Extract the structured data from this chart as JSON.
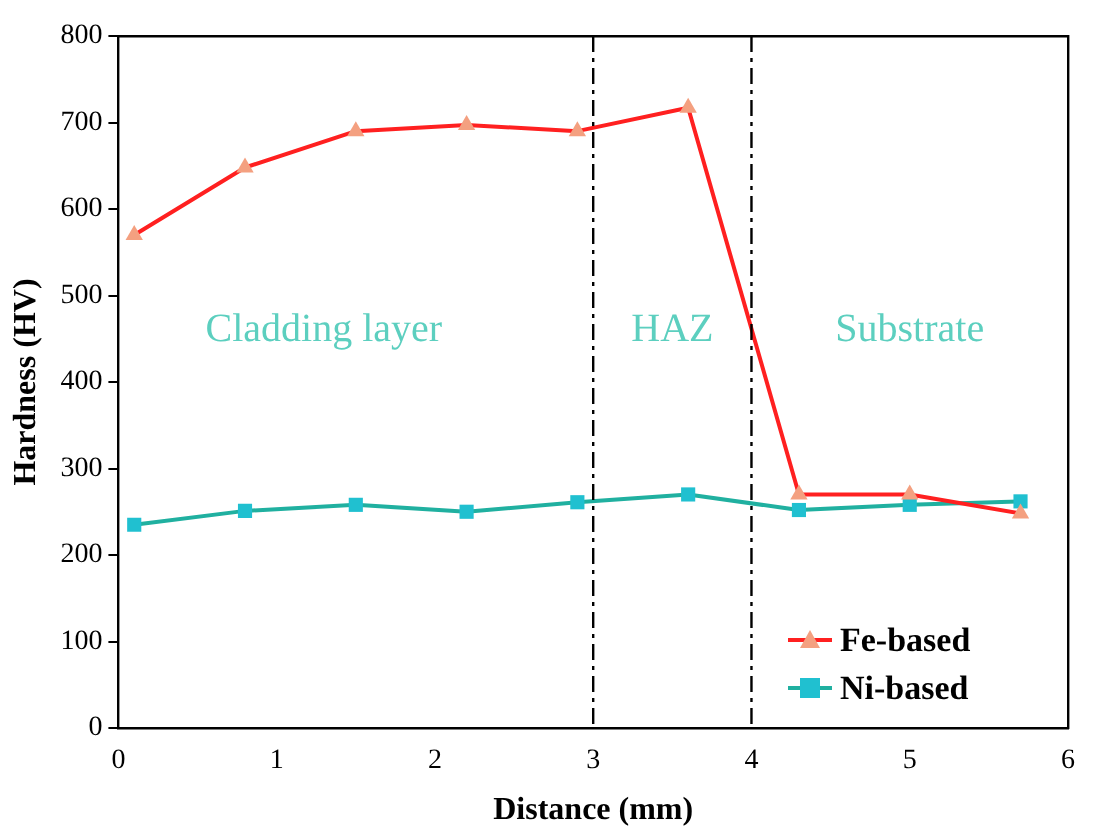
{
  "chart_data": {
    "type": "line",
    "xlabel": "Distance (mm)",
    "ylabel": "Hardness (HV)",
    "xlim": [
      0,
      6
    ],
    "xticks": [
      0,
      1,
      2,
      3,
      4,
      5,
      6
    ],
    "ylim": [
      0,
      800
    ],
    "yticks": [
      0,
      100,
      200,
      300,
      400,
      500,
      600,
      700,
      800
    ],
    "x": [
      0.1,
      0.8,
      1.5,
      2.2,
      2.9,
      3.6,
      4.3,
      5.0,
      5.7
    ],
    "series": [
      {
        "name": "Fe-based",
        "color": "#ff2020",
        "marker": "triangle",
        "values": [
          570,
          648,
          690,
          697,
          690,
          717,
          270,
          270,
          248
        ]
      },
      {
        "name": "Ni-based",
        "color": "#20b0a0",
        "marker": "square",
        "values": [
          235,
          251,
          258,
          250,
          261,
          270,
          252,
          258,
          262
        ]
      }
    ],
    "ref_lines": [
      {
        "axis": "x",
        "value": 3,
        "color": "#000000",
        "line_style": "dashdot"
      },
      {
        "axis": "x",
        "value": 4,
        "color": "#000000",
        "line_style": "dashdot"
      }
    ],
    "annotations": [
      "Cladding layer",
      "HAZ",
      "Substrate"
    ],
    "legend": "bottom right",
    "grid": false
  }
}
